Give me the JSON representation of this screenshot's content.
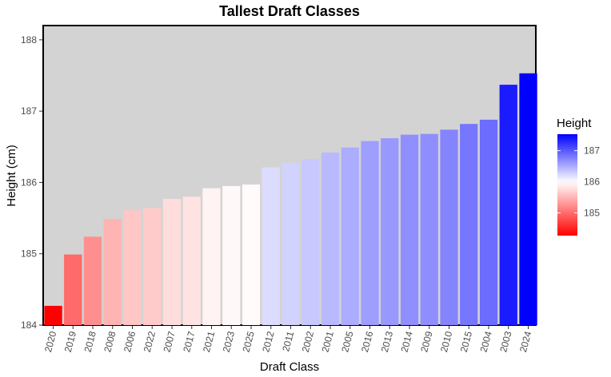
{
  "chart_data": {
    "type": "bar",
    "title": "Tallest Draft Classes",
    "xlabel": "Draft Class",
    "ylabel": "Height (cm)",
    "categories": [
      "2020",
      "2019",
      "2018",
      "2008",
      "2006",
      "2022",
      "2007",
      "2017",
      "2021",
      "2023",
      "2025",
      "2012",
      "2011",
      "2002",
      "2001",
      "2005",
      "2016",
      "2013",
      "2014",
      "2009",
      "2010",
      "2015",
      "2004",
      "2003",
      "2024"
    ],
    "values": [
      184.27,
      184.99,
      185.24,
      185.49,
      185.61,
      185.64,
      185.77,
      185.8,
      185.92,
      185.95,
      185.97,
      186.21,
      186.27,
      186.33,
      186.42,
      186.49,
      186.58,
      186.62,
      186.67,
      186.68,
      186.74,
      186.82,
      186.88,
      187.37,
      187.53
    ],
    "ylim": [
      184.0,
      188.2
    ],
    "yticks": [
      184,
      185,
      186,
      187,
      188
    ],
    "background": "#d3d3d3",
    "grid": false,
    "legend": {
      "title": "Height",
      "position": "right",
      "ticks": [
        185,
        186,
        187
      ],
      "low_color": "#ff0000",
      "mid_color": "#ffffff",
      "high_color": "#0000ff",
      "midpoint": 186.0
    }
  }
}
